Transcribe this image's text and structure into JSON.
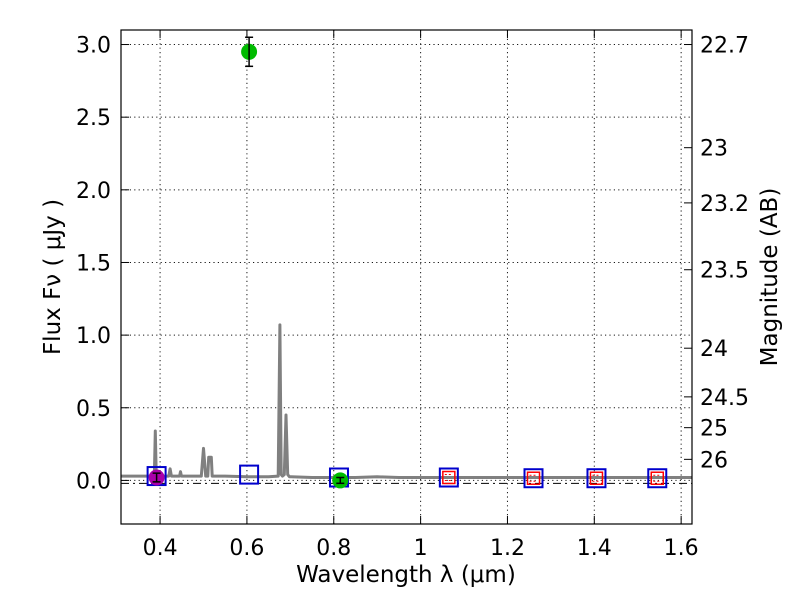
{
  "chart_data": {
    "type": "scatter",
    "title": "",
    "xlabel": "Wavelength  λ (μm)",
    "ylabel": "Flux  Fν  ( μJy )",
    "ylabel_right": "Magnitude (AB)",
    "xlim": [
      0.31,
      1.625
    ],
    "ylim": [
      -0.3,
      3.1
    ],
    "grid": true,
    "x_ticks": [
      0.4,
      0.6,
      0.8,
      1.0,
      1.2,
      1.4,
      1.6
    ],
    "x_tick_labels": [
      "0.4",
      "0.6",
      "0.8",
      "1",
      "1.2",
      "1.4",
      "1.6"
    ],
    "y_ticks": [
      0.0,
      0.5,
      1.0,
      1.5,
      2.0,
      2.5,
      3.0
    ],
    "y_tick_labels": [
      "0.0",
      "0.5",
      "1.0",
      "1.5",
      "2.0",
      "2.5",
      "3.0"
    ],
    "right_ticks": [
      {
        "label": "22.7",
        "flux": 3.0
      },
      {
        "label": "23",
        "flux": 2.29
      },
      {
        "label": "23.2",
        "flux": 1.91
      },
      {
        "label": "23.5",
        "flux": 1.45
      },
      {
        "label": "24",
        "flux": 0.91
      },
      {
        "label": "24.5",
        "flux": 0.575
      },
      {
        "label": "25",
        "flux": 0.363
      },
      {
        "label": "26",
        "flux": 0.145
      }
    ],
    "colors": {
      "model": "#808080",
      "detection": "#00bb00",
      "detection_alt": "#aa00aa",
      "model_box": "#0000cc",
      "limit_box": "#ff0000",
      "errorbar": "#000000"
    },
    "model_spectrum": {
      "name": "model SED",
      "x": [
        0.31,
        0.38,
        0.387,
        0.389,
        0.391,
        0.395,
        0.42,
        0.423,
        0.426,
        0.445,
        0.447,
        0.449,
        0.495,
        0.5,
        0.505,
        0.51,
        0.512,
        0.514,
        0.518,
        0.52,
        0.55,
        0.6,
        0.65,
        0.672,
        0.676,
        0.679,
        0.682,
        0.686,
        0.69,
        0.694,
        0.698,
        0.702,
        0.75,
        0.85,
        0.9,
        0.95,
        1.0,
        1.2,
        1.4,
        1.625
      ],
      "y": [
        0.03,
        0.03,
        0.05,
        0.34,
        0.05,
        0.03,
        0.03,
        0.08,
        0.03,
        0.03,
        0.06,
        0.03,
        0.03,
        0.22,
        0.03,
        0.03,
        0.16,
        0.16,
        0.16,
        0.03,
        0.03,
        0.025,
        0.025,
        0.03,
        1.07,
        0.04,
        0.03,
        0.04,
        0.45,
        0.04,
        0.025,
        0.025,
        0.02,
        0.02,
        0.025,
        0.02,
        0.02,
        0.02,
        0.02,
        0.02
      ]
    },
    "reference_line": {
      "name": "zero level",
      "y": -0.02
    },
    "detections": [
      {
        "name": "detection 0.39",
        "x": 0.392,
        "y": 0.02,
        "yerr": 0.03,
        "color": "#aa00aa"
      },
      {
        "name": "detection 0.60",
        "x": 0.605,
        "y": 2.95,
        "yerr": 0.1,
        "color": "#00bb00"
      },
      {
        "name": "detection 0.81",
        "x": 0.815,
        "y": 0.0,
        "yerr": 0.02,
        "color": "#00bb00"
      }
    ],
    "model_photometry": [
      {
        "x": 0.392,
        "y": 0.03
      },
      {
        "x": 0.605,
        "y": 0.04
      },
      {
        "x": 0.812,
        "y": 0.02
      },
      {
        "x": 1.065,
        "y": 0.02
      },
      {
        "x": 1.26,
        "y": 0.015
      },
      {
        "x": 1.405,
        "y": 0.015
      },
      {
        "x": 1.545,
        "y": 0.015
      }
    ],
    "upper_limits": [
      {
        "x": 1.065,
        "y": 0.02
      },
      {
        "x": 1.26,
        "y": 0.015
      },
      {
        "x": 1.405,
        "y": 0.015
      },
      {
        "x": 1.545,
        "y": 0.015
      }
    ]
  }
}
